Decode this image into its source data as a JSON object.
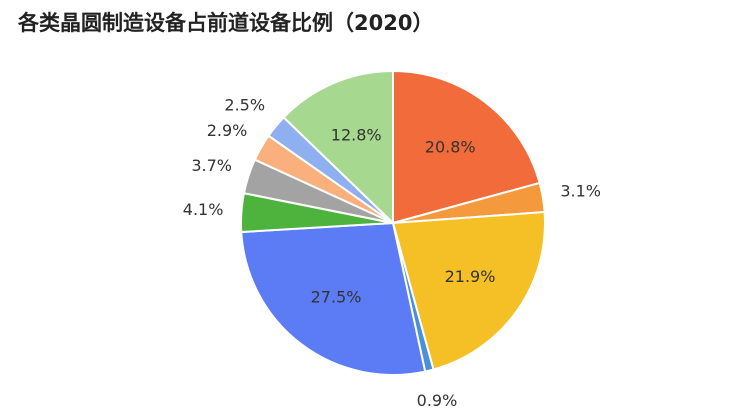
{
  "chart_data": {
    "type": "pie",
    "title": "各类晶圆制造设备占前道设备比例（2020）",
    "values": [
      20.8,
      3.1,
      21.9,
      0.9,
      27.5,
      4.1,
      3.7,
      2.9,
      2.5,
      12.8
    ],
    "value_labels": [
      "20.8%",
      "3.1%",
      "21.9%",
      "0.9%",
      "27.5%",
      "4.1%",
      "3.7%",
      "2.9%",
      "2.5%",
      "12.8%"
    ],
    "colors": [
      "#f26b3a",
      "#f59a3c",
      "#f5bf26",
      "#4a90d9",
      "#5b7cf5",
      "#4db33d",
      "#a3a3a3",
      "#f9b07c",
      "#8fb0f0",
      "#a6d98f"
    ]
  }
}
